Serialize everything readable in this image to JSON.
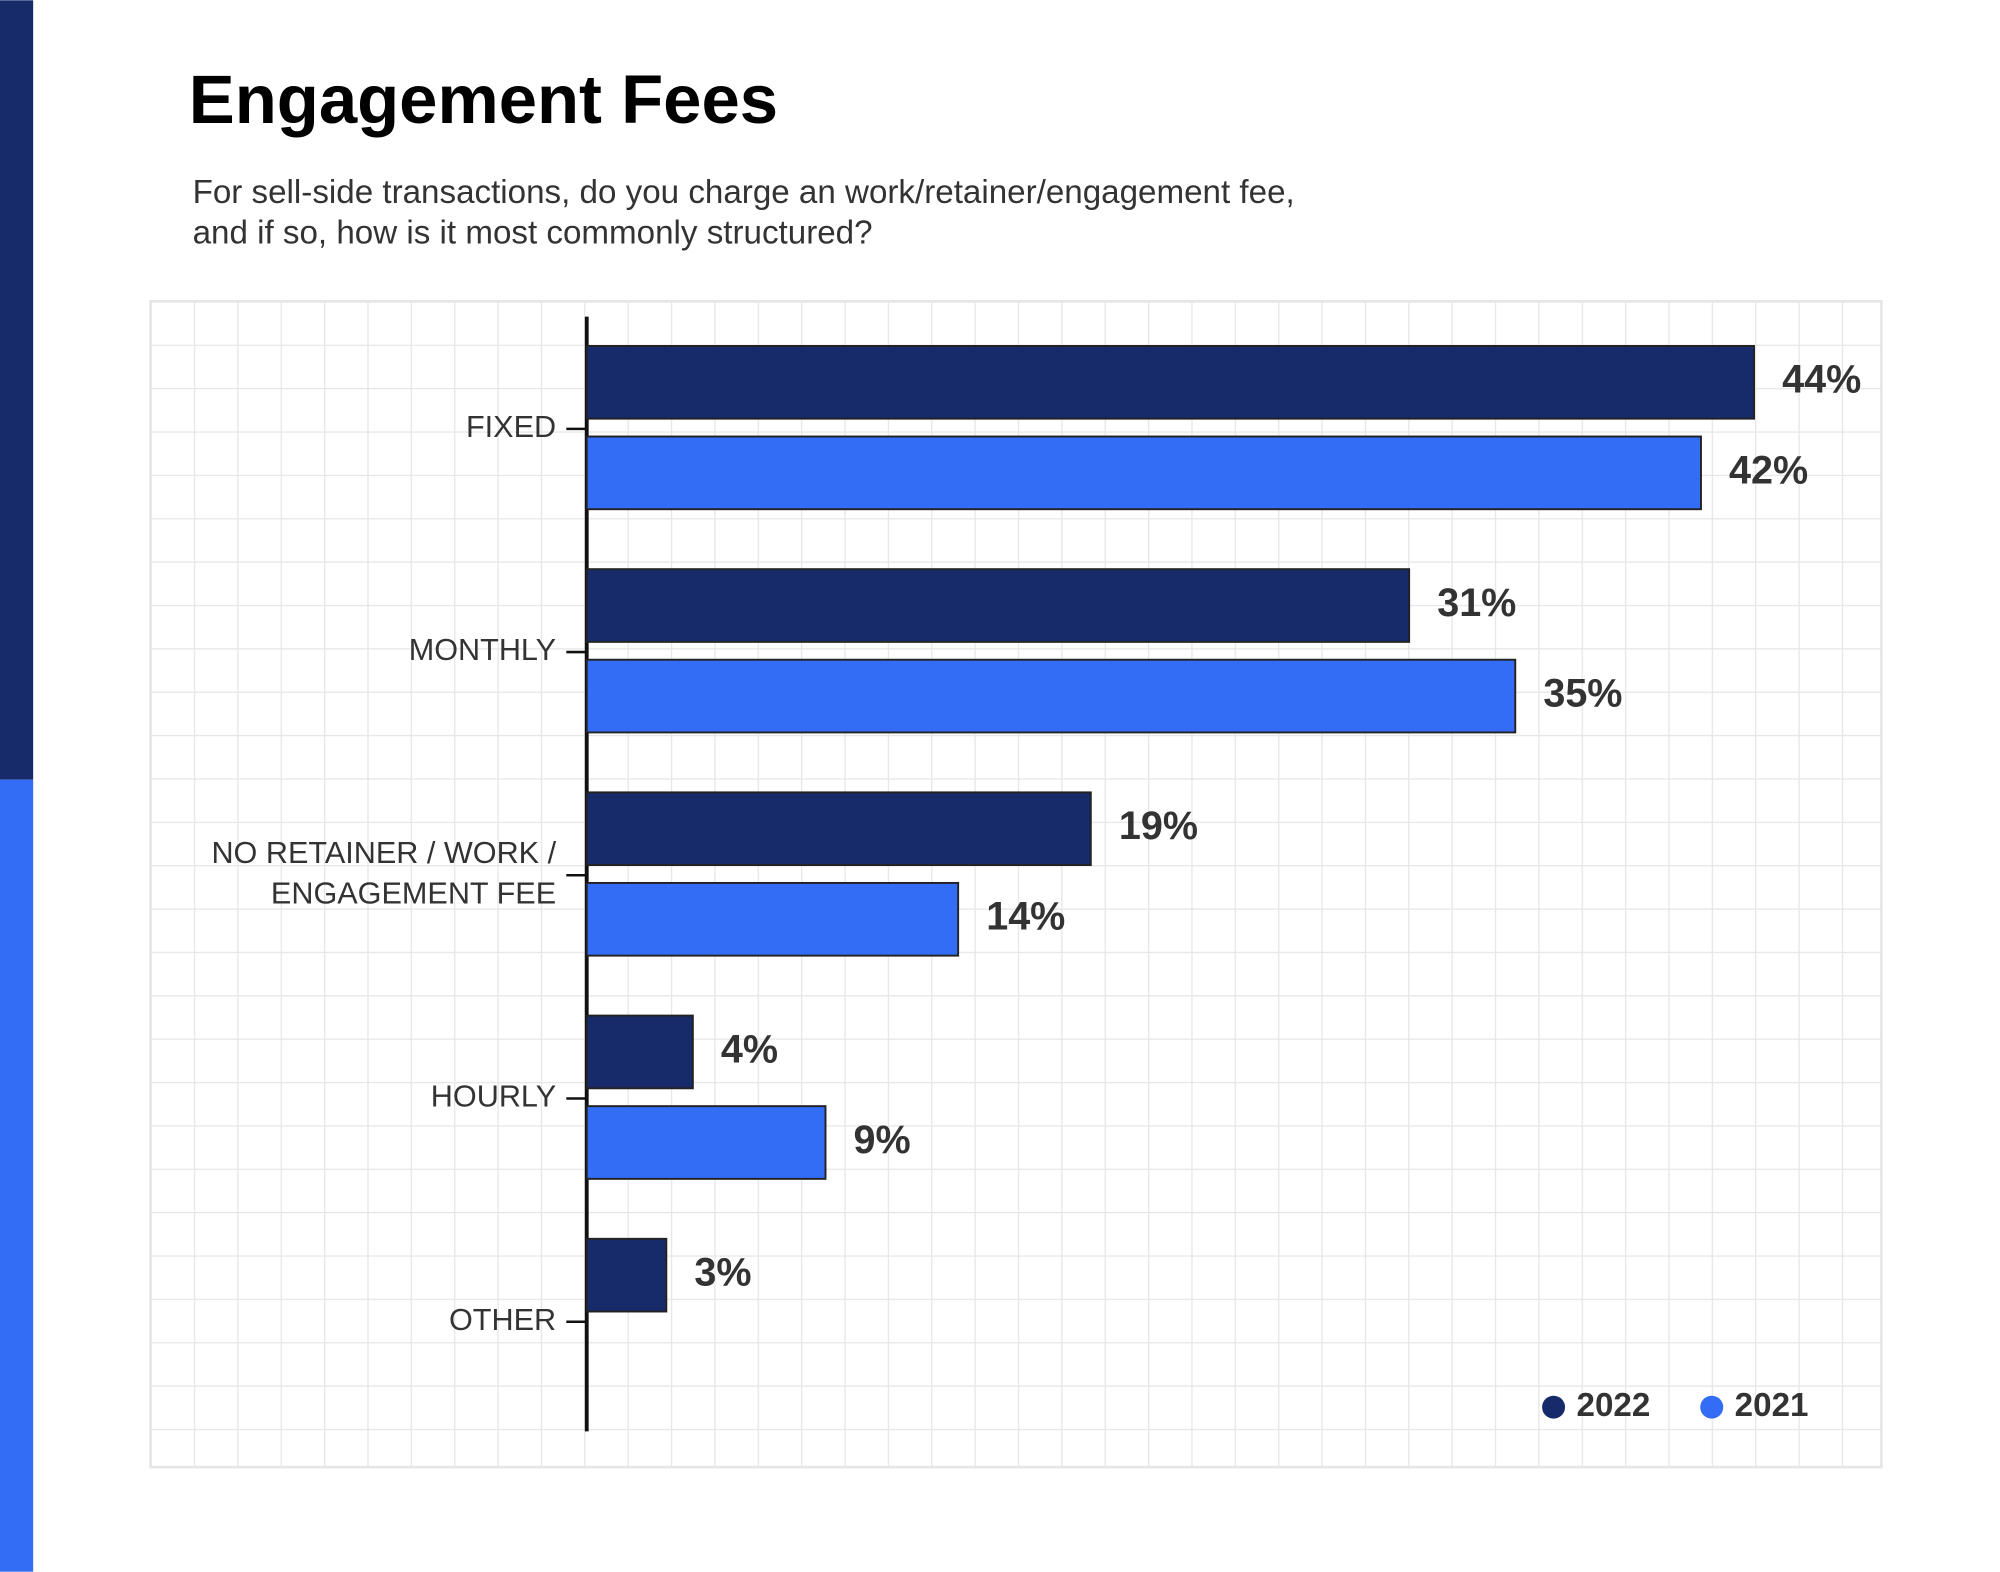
{
  "chart_data": {
    "type": "hbar",
    "title": "Engagement Fees",
    "subtitle": [
      "For sell-side transactions, do you charge an work/retainer/engagement fee,",
      "and if so, how is it most commonly structured?"
    ],
    "categories": [
      "FIXED",
      "MONTHLY",
      "NO RETAINER / WORK / ENGAGEMENT FEE",
      "HOURLY",
      "OTHER"
    ],
    "series": [
      {
        "name": "2022",
        "color": "#172b6b",
        "values": [
          44,
          31,
          19,
          4,
          3
        ],
        "value_labels": [
          "44%",
          "31%",
          "19%",
          "4%",
          "3%"
        ]
      },
      {
        "name": "2021",
        "color": "#336cf5",
        "values": [
          42,
          35,
          14,
          9,
          null
        ],
        "value_labels": [
          "42%",
          "35%",
          "14%",
          "9%",
          null
        ]
      }
    ],
    "xlim": [
      0,
      48.8
    ],
    "legend": "bottom-right"
  }
}
